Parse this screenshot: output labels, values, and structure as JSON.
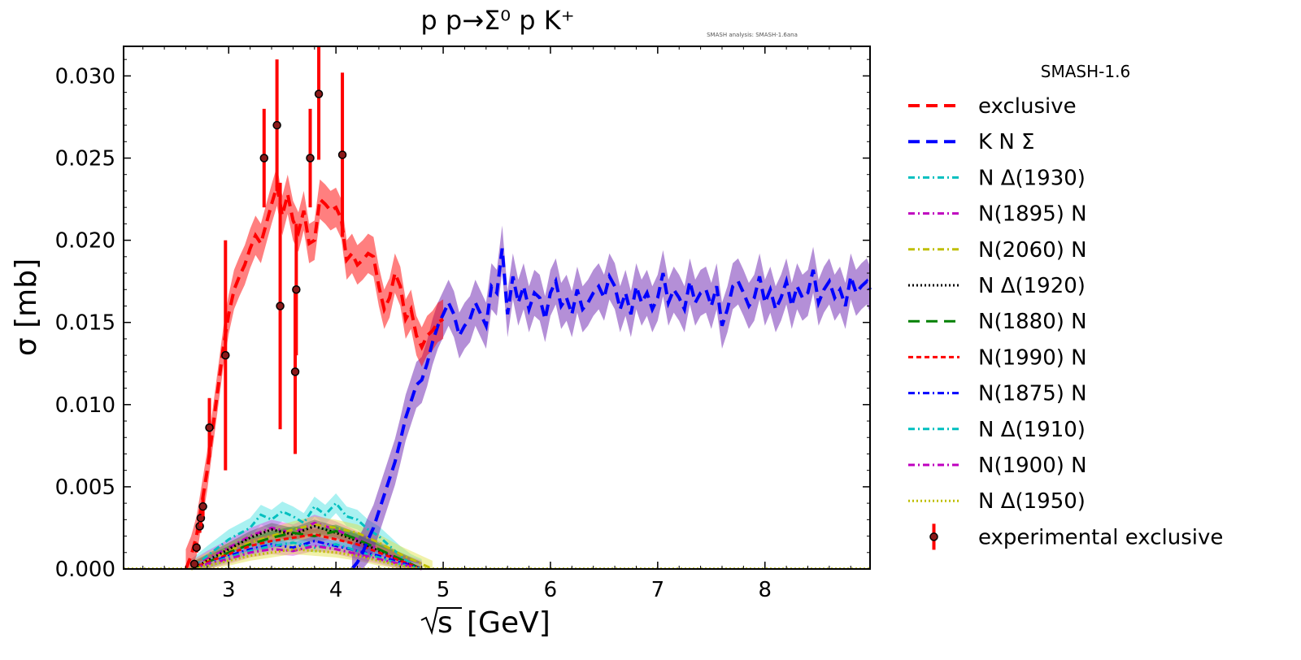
{
  "chart_data": {
    "type": "line",
    "title": "p p→Σ⁰ p K⁺",
    "note": "SMASH analysis: SMASH-1.6ana",
    "xlabel_root": "√s",
    "xlabel_unit": "[GeV]",
    "ylabel": "σ [mb]",
    "xlim": [
      2.02,
      8.98
    ],
    "ylim": [
      0.0,
      0.0318
    ],
    "x_ticks": [
      3,
      4,
      5,
      6,
      7,
      8
    ],
    "x_tick_labels": [
      "3",
      "4",
      "5",
      "6",
      "7",
      "8"
    ],
    "y_ticks": [
      0.0,
      0.005,
      0.01,
      0.015,
      0.02,
      0.025,
      0.03
    ],
    "y_tick_labels": [
      "0.000",
      "0.005",
      "0.010",
      "0.015",
      "0.020",
      "0.025",
      "0.030"
    ],
    "legend_title": "SMASH-1.6",
    "legend": [
      {
        "label": "exclusive",
        "color": "#ff0000",
        "style": "dashed"
      },
      {
        "label": "K N Σ",
        "color": "#0000ff",
        "style": "dashed"
      },
      {
        "label": "N Δ(1930)",
        "color": "#00bfbf",
        "style": "dashdot"
      },
      {
        "label": "N(1895) N",
        "color": "#bf00bf",
        "style": "dashdot"
      },
      {
        "label": "N(2060) N",
        "color": "#bfbf00",
        "style": "dashdot"
      },
      {
        "label": "N Δ(1920)",
        "color": "#000000",
        "style": "dotted"
      },
      {
        "label": "N(1880) N",
        "color": "#008000",
        "style": "dashed"
      },
      {
        "label": "N(1990) N",
        "color": "#ff0000",
        "style": "dashed-fine"
      },
      {
        "label": "N(1875) N",
        "color": "#0000ff",
        "style": "dashdot"
      },
      {
        "label": "N Δ(1910)",
        "color": "#00bfbf",
        "style": "dashdot"
      },
      {
        "label": "N(1900) N",
        "color": "#bf00bf",
        "style": "dashdot"
      },
      {
        "label": "N Δ(1950)",
        "color": "#bfbf00",
        "style": "dotted"
      },
      {
        "label": "experimental exclusive",
        "color": "#ff0000",
        "style": "errorbar"
      }
    ],
    "series": [
      {
        "name": "exclusive",
        "color": "#ff0000",
        "band_color": "#ff0000",
        "x": [
          2.6,
          2.65,
          2.7,
          2.75,
          2.8,
          2.85,
          2.9,
          2.95,
          3.0,
          3.05,
          3.1,
          3.15,
          3.2,
          3.25,
          3.3,
          3.35,
          3.4,
          3.45,
          3.5,
          3.55,
          3.6,
          3.65,
          3.7,
          3.75,
          3.8,
          3.85,
          3.9,
          3.95,
          4.0,
          4.05,
          4.1,
          4.15,
          4.2,
          4.25,
          4.3,
          4.35,
          4.4,
          4.45,
          4.5,
          4.55,
          4.6,
          4.65,
          4.7,
          4.75,
          4.8,
          4.85,
          4.9,
          4.95,
          5.0
        ],
        "y": [
          0.0,
          0.0008,
          0.002,
          0.004,
          0.006,
          0.0085,
          0.011,
          0.0135,
          0.0155,
          0.017,
          0.0178,
          0.0185,
          0.0195,
          0.0203,
          0.0198,
          0.021,
          0.0222,
          0.0233,
          0.0215,
          0.0228,
          0.0212,
          0.0205,
          0.0218,
          0.0198,
          0.02,
          0.0225,
          0.0222,
          0.0218,
          0.022,
          0.0213,
          0.0188,
          0.0192,
          0.0185,
          0.0188,
          0.0192,
          0.019,
          0.0172,
          0.0158,
          0.0165,
          0.018,
          0.0172,
          0.0152,
          0.0158,
          0.0142,
          0.0135,
          0.0142,
          0.0145,
          0.015,
          0.0152
        ],
        "err": 0.0012
      },
      {
        "name": "K N Σ",
        "color": "#0000ff",
        "band_color": "#6a1fb0",
        "x": [
          4.15,
          4.2,
          4.25,
          4.3,
          4.35,
          4.4,
          4.45,
          4.5,
          4.55,
          4.6,
          4.65,
          4.7,
          4.75,
          4.8,
          4.85,
          4.9,
          4.95,
          5.0,
          5.05,
          5.1,
          5.15,
          5.2,
          5.25,
          5.3,
          5.35,
          5.4,
          5.45,
          5.5,
          5.55,
          5.6,
          5.65,
          5.7,
          5.75,
          5.8,
          5.85,
          5.9,
          5.95,
          6.0,
          6.05,
          6.1,
          6.15,
          6.2,
          6.25,
          6.3,
          6.35,
          6.4,
          6.45,
          6.5,
          6.55,
          6.6,
          6.65,
          6.7,
          6.75,
          6.8,
          6.85,
          6.9,
          6.95,
          7.0,
          7.05,
          7.1,
          7.15,
          7.2,
          7.25,
          7.3,
          7.35,
          7.4,
          7.45,
          7.5,
          7.55,
          7.6,
          7.65,
          7.7,
          7.75,
          7.8,
          7.85,
          7.9,
          7.95,
          8.0,
          8.05,
          8.1,
          8.15,
          8.2,
          8.25,
          8.3,
          8.35,
          8.4,
          8.45,
          8.5,
          8.55,
          8.6,
          8.65,
          8.7,
          8.75,
          8.8,
          8.85,
          8.9,
          8.95,
          8.98
        ],
        "y": [
          0.0,
          0.0004,
          0.001,
          0.0018,
          0.0025,
          0.0035,
          0.0045,
          0.0055,
          0.0065,
          0.0078,
          0.0092,
          0.0102,
          0.0112,
          0.0115,
          0.0125,
          0.0138,
          0.0148,
          0.0155,
          0.0162,
          0.0155,
          0.0142,
          0.0148,
          0.0152,
          0.0162,
          0.0155,
          0.0148,
          0.0172,
          0.0168,
          0.0195,
          0.0155,
          0.0178,
          0.0162,
          0.0172,
          0.0158,
          0.0168,
          0.0165,
          0.0152,
          0.0168,
          0.0175,
          0.016,
          0.0165,
          0.0155,
          0.017,
          0.0158,
          0.0162,
          0.0168,
          0.0172,
          0.0165,
          0.0178,
          0.0172,
          0.0158,
          0.0168,
          0.0155,
          0.0172,
          0.0162,
          0.0168,
          0.0158,
          0.0165,
          0.018,
          0.0162,
          0.017,
          0.0165,
          0.0158,
          0.0175,
          0.0162,
          0.0168,
          0.017,
          0.016,
          0.0172,
          0.0148,
          0.0158,
          0.0172,
          0.0175,
          0.0168,
          0.016,
          0.0165,
          0.0178,
          0.0162,
          0.017,
          0.0158,
          0.0165,
          0.0175,
          0.016,
          0.0172,
          0.0165,
          0.0168,
          0.0182,
          0.0162,
          0.017,
          0.0175,
          0.0165,
          0.017,
          0.016,
          0.0178,
          0.0168,
          0.0172,
          0.0175,
          0.017
        ],
        "err": 0.0014
      },
      {
        "name": "N Δ(1930)",
        "color": "#00bfbf",
        "band_color": "#40e0e0",
        "x": [
          2.65,
          2.8,
          3.0,
          3.2,
          3.3,
          3.4,
          3.5,
          3.6,
          3.7,
          3.8,
          3.9,
          4.0,
          4.1,
          4.2,
          4.3,
          4.4,
          4.5,
          4.6,
          4.7,
          4.8
        ],
        "y": [
          0.0,
          0.0008,
          0.0018,
          0.0025,
          0.0033,
          0.003,
          0.0035,
          0.0032,
          0.0028,
          0.0038,
          0.0033,
          0.004,
          0.0032,
          0.003,
          0.0024,
          0.002,
          0.0014,
          0.0008,
          0.0003,
          0.0
        ],
        "err": 0.0006
      },
      {
        "name": "N(1895) N",
        "color": "#bf00bf",
        "band_color": "#e040e0",
        "x": [
          2.65,
          2.8,
          3.0,
          3.2,
          3.4,
          3.6,
          3.8,
          4.0,
          4.2,
          4.4,
          4.6,
          4.8
        ],
        "y": [
          0.0,
          0.0006,
          0.0013,
          0.002,
          0.0025,
          0.0022,
          0.0028,
          0.0024,
          0.0018,
          0.0012,
          0.0005,
          0.0
        ],
        "err": 0.0005
      },
      {
        "name": "N(2060) N",
        "color": "#bfbf00",
        "band_color": "#e0e040",
        "x": [
          2.65,
          2.8,
          3.0,
          3.2,
          3.4,
          3.6,
          3.8,
          4.0,
          4.2,
          4.4,
          4.6,
          4.8,
          4.9
        ],
        "y": [
          0.0,
          0.0005,
          0.0011,
          0.0016,
          0.002,
          0.0024,
          0.0027,
          0.0025,
          0.0022,
          0.0016,
          0.0009,
          0.0003,
          0.0
        ],
        "err": 0.0005
      },
      {
        "name": "N Δ(1920)",
        "color": "#000000",
        "band_color": "#606060",
        "x": [
          2.65,
          2.8,
          3.0,
          3.2,
          3.4,
          3.6,
          3.8,
          4.0,
          4.2,
          4.4,
          4.6,
          4.8
        ],
        "y": [
          0.0,
          0.0005,
          0.0012,
          0.0019,
          0.0024,
          0.0021,
          0.0026,
          0.0022,
          0.0017,
          0.0011,
          0.0005,
          0.0
        ],
        "err": 0.0004
      },
      {
        "name": "N(1880) N",
        "color": "#008000",
        "band_color": "#20a020",
        "x": [
          2.65,
          2.8,
          3.0,
          3.2,
          3.4,
          3.6,
          3.8,
          4.0,
          4.2,
          4.4,
          4.6,
          4.8
        ],
        "y": [
          0.0,
          0.0004,
          0.001,
          0.0015,
          0.0019,
          0.0022,
          0.002,
          0.0023,
          0.0018,
          0.0012,
          0.0006,
          0.0
        ],
        "err": 0.0004
      },
      {
        "name": "N(1990) N",
        "color": "#ff0000",
        "band_color": "#ff6060",
        "x": [
          2.65,
          2.8,
          3.0,
          3.2,
          3.4,
          3.6,
          3.8,
          4.0,
          4.2,
          4.4,
          4.6,
          4.8
        ],
        "y": [
          0.0,
          0.0004,
          0.0009,
          0.0014,
          0.0017,
          0.0019,
          0.0021,
          0.0018,
          0.0015,
          0.001,
          0.0005,
          0.0
        ],
        "err": 0.0004
      },
      {
        "name": "N(1875) N",
        "color": "#0000ff",
        "band_color": "#4060ff",
        "x": [
          2.65,
          2.8,
          3.0,
          3.2,
          3.4,
          3.6,
          3.8,
          4.0,
          4.2,
          4.4,
          4.6,
          4.8
        ],
        "y": [
          0.0,
          0.0003,
          0.0008,
          0.0012,
          0.0015,
          0.0013,
          0.0017,
          0.0014,
          0.0011,
          0.0008,
          0.0004,
          0.0
        ],
        "err": 0.0003
      },
      {
        "name": "N Δ(1910)",
        "color": "#00bfbf",
        "band_color": "#40e0e0",
        "x": [
          2.65,
          2.8,
          3.0,
          3.2,
          3.4,
          3.6,
          3.8,
          4.0,
          4.2,
          4.4,
          4.6,
          4.8
        ],
        "y": [
          0.0,
          0.0003,
          0.0007,
          0.0011,
          0.0014,
          0.0016,
          0.0013,
          0.0015,
          0.0011,
          0.0007,
          0.0003,
          0.0
        ],
        "err": 0.0003
      },
      {
        "name": "N(1900) N",
        "color": "#bf00bf",
        "band_color": "#e040e0",
        "x": [
          2.65,
          2.8,
          3.0,
          3.2,
          3.4,
          3.6,
          3.8,
          4.0,
          4.2,
          4.4,
          4.6,
          4.8
        ],
        "y": [
          0.0,
          0.0003,
          0.0006,
          0.001,
          0.0012,
          0.0011,
          0.0014,
          0.0012,
          0.0009,
          0.0006,
          0.0003,
          0.0
        ],
        "err": 0.0003
      },
      {
        "name": "N Δ(1950)",
        "color": "#bfbf00",
        "band_color": "#e0e040",
        "x": [
          2.65,
          2.8,
          3.0,
          3.2,
          3.4,
          3.6,
          3.8,
          4.0,
          4.2,
          4.4,
          4.6,
          4.8
        ],
        "y": [
          0.0,
          0.0002,
          0.0005,
          0.0008,
          0.001,
          0.0012,
          0.0011,
          0.001,
          0.0008,
          0.0005,
          0.0002,
          0.0
        ],
        "err": 0.0003
      }
    ],
    "experimental": {
      "name": "experimental exclusive",
      "color": "#ff0000",
      "points": [
        {
          "x": 2.68,
          "y": 0.0003,
          "err": 0.0002
        },
        {
          "x": 2.7,
          "y": 0.0013,
          "err": 0.0003
        },
        {
          "x": 2.73,
          "y": 0.0026,
          "err": 0.0004
        },
        {
          "x": 2.74,
          "y": 0.0031,
          "err": 0.0005
        },
        {
          "x": 2.76,
          "y": 0.0038,
          "err": 0.0006
        },
        {
          "x": 2.82,
          "y": 0.0086,
          "err": 0.0018
        },
        {
          "x": 2.97,
          "y": 0.013,
          "err": 0.007
        },
        {
          "x": 3.33,
          "y": 0.025,
          "err": 0.003
        },
        {
          "x": 3.45,
          "y": 0.027,
          "err": 0.004
        },
        {
          "x": 3.48,
          "y": 0.016,
          "err": 0.0075
        },
        {
          "x": 3.62,
          "y": 0.012,
          "err": 0.005
        },
        {
          "x": 3.63,
          "y": 0.017,
          "err": 0.004
        },
        {
          "x": 3.76,
          "y": 0.025,
          "err": 0.003
        },
        {
          "x": 3.84,
          "y": 0.0289,
          "err": 0.004
        },
        {
          "x": 4.06,
          "y": 0.0252,
          "err": 0.005
        }
      ]
    }
  }
}
